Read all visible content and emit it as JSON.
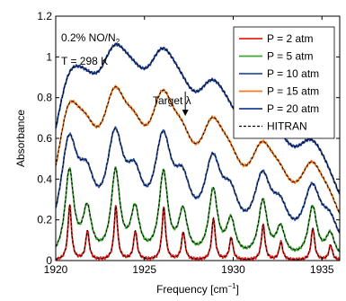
{
  "chart_data": {
    "type": "line",
    "title": "",
    "xlabel": "Frequency [cm⁻¹]",
    "ylabel": "Absorbance",
    "xlim": [
      1920,
      1936
    ],
    "ylim": [
      0,
      1.2
    ],
    "xticks": [
      1920,
      1925,
      1930,
      1935
    ],
    "yticks": [
      0,
      0.2,
      0.4,
      0.6,
      0.8,
      1,
      1.2
    ],
    "ytick_labels": [
      "0",
      "0.2",
      "0.4",
      "0.6",
      "0.8",
      "1",
      "1.2"
    ],
    "grid": false,
    "legend_position": "top-right",
    "annotations": {
      "mixture": "0.2% NO/N",
      "mixture_sub": "2",
      "temperature": "T = 298 K",
      "target": "Target λ",
      "target_x": 1927.3,
      "target_y_from": 0.83,
      "target_y_to": 0.71
    },
    "line_centers": [
      1920.8,
      1921.8,
      1923.4,
      1924.5,
      1926.1,
      1927.2,
      1928.9,
      1929.9,
      1931.7,
      1932.7,
      1934.5,
      1935.5
    ],
    "line_strengths": [
      0.51,
      0.27,
      0.5,
      0.27,
      0.49,
      0.26,
      0.39,
      0.21,
      0.33,
      0.17,
      0.3,
      0.14
    ],
    "series": [
      {
        "name": "P = 2 atm",
        "color": "#e8231c",
        "pressure": 2
      },
      {
        "name": "P = 5 atm",
        "color": "#3fa535",
        "pressure": 5
      },
      {
        "name": "P = 10 atm",
        "color": "#2d53a3",
        "pressure": 10
      },
      {
        "name": "P = 15 atm",
        "color": "#f07a22",
        "pressure": 15
      },
      {
        "name": "P = 20 atm",
        "color": "#1f3f97",
        "pressure": 20
      },
      {
        "name": "HITRAN",
        "color": "#000000",
        "style": "dashed"
      }
    ]
  }
}
